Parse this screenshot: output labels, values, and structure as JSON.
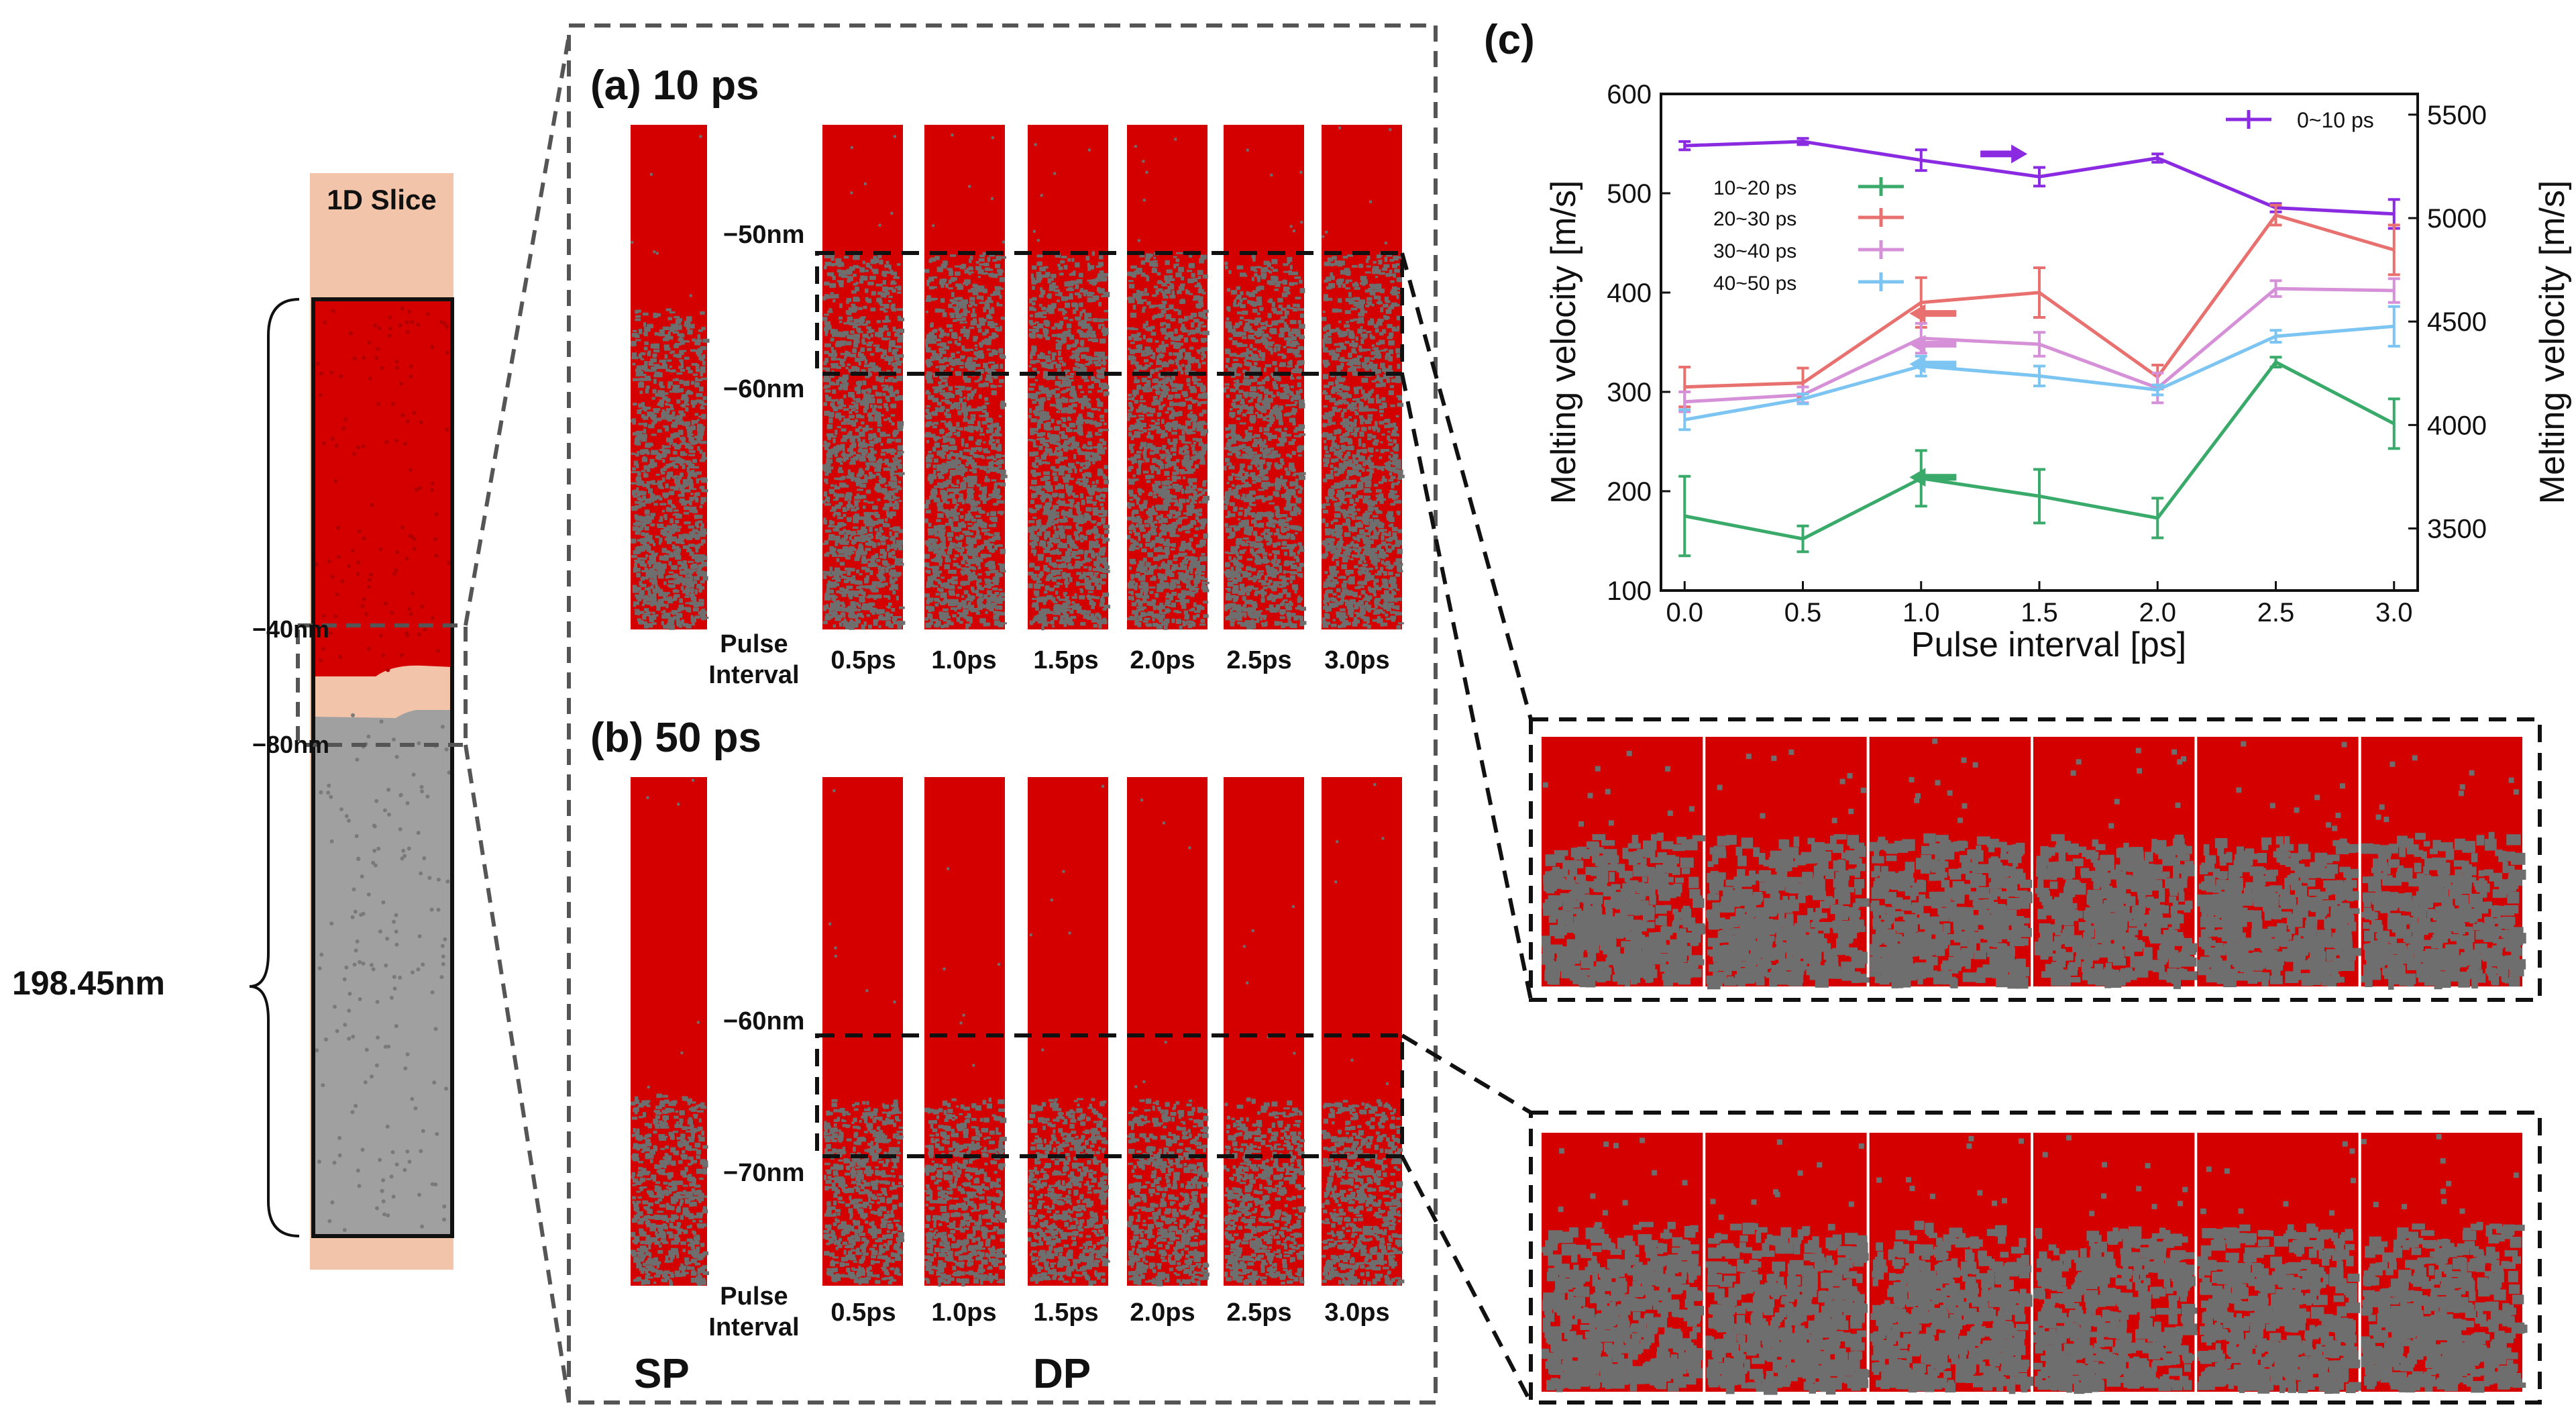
{
  "slice": {
    "title": "1D Slice",
    "marker_top": "−40nm",
    "marker_bottom": "−80nm",
    "length": "198.45nm"
  },
  "panel_a": {
    "label": "(a) 10 ps",
    "depth_top": "−50nm",
    "depth_bottom": "−60nm",
    "sp_melt_fraction": 0.36,
    "dp_melt_fraction": 0.25
  },
  "panel_b": {
    "label": "(b) 50 ps",
    "depth_top": "−60nm",
    "depth_bottom": "−70nm",
    "sp_melt_fraction": 0.62,
    "dp_melt_fraction": 0.63
  },
  "pulse_interval_label": [
    "Pulse",
    "Interval"
  ],
  "intervals": [
    "0.5ps",
    "1.0ps",
    "1.5ps",
    "2.0ps",
    "2.5ps",
    "3.0ps"
  ],
  "sp_label": "SP",
  "dp_label": "DP",
  "panel_c_label": "(c)",
  "colors": {
    "solid_atoms": "#d40000",
    "liquid_atoms": "#6e6e6e",
    "slice_bg": "#f2c4aa",
    "slice_gray": "#9a9a9a",
    "dash_gray": "#555555",
    "series_0_10": "#8a2be2",
    "series_10_20": "#3aaa6a",
    "series_20_30": "#e8706e",
    "series_30_40": "#d690d8",
    "series_40_50": "#7cc4f2"
  },
  "chart_data": {
    "type": "line",
    "title": "",
    "xlabel": "Pulse interval [ps]",
    "ylabel": "Melting velocity [m/s]",
    "ylabel_right": "Melting velocity [m/s]",
    "x": [
      0.0,
      0.5,
      1.0,
      1.5,
      2.0,
      2.5,
      3.0
    ],
    "xticks": [
      "0.0",
      "0.5",
      "1.0",
      "1.5",
      "2.0",
      "2.5",
      "3.0"
    ],
    "xlim": [
      -0.1,
      3.1
    ],
    "ylim": [
      100,
      600
    ],
    "yticks": [
      "100",
      "200",
      "300",
      "400",
      "500",
      "600"
    ],
    "ylim_right": [
      3200,
      5600
    ],
    "yticks_right": [
      "3500",
      "4000",
      "4500",
      "5000",
      "5500"
    ],
    "series": [
      {
        "name": "0~10 ps",
        "axis": "right",
        "color": "#8a2be2",
        "values": [
          5350,
          5370,
          5280,
          5200,
          5290,
          5050,
          5020
        ],
        "errors": [
          20,
          15,
          50,
          45,
          20,
          20,
          70
        ]
      },
      {
        "name": "10~20 ps",
        "axis": "left",
        "color": "#3aaa6a",
        "values": [
          175,
          152,
          213,
          195,
          173,
          330,
          268
        ],
        "errors": [
          40,
          13,
          28,
          27,
          20,
          5,
          25
        ]
      },
      {
        "name": "20~30 ps",
        "axis": "left",
        "color": "#e8706e",
        "values": [
          305,
          309,
          390,
          400,
          315,
          478,
          443
        ],
        "errors": [
          20,
          15,
          25,
          25,
          12,
          10,
          25
        ]
      },
      {
        "name": "30~40 ps",
        "axis": "left",
        "color": "#d690d8",
        "values": [
          290,
          297,
          354,
          348,
          304,
          404,
          402
        ],
        "errors": [
          10,
          8,
          15,
          12,
          15,
          8,
          12
        ]
      },
      {
        "name": "40~50 ps",
        "axis": "left",
        "color": "#7cc4f2",
        "values": [
          272,
          293,
          326,
          316,
          302,
          356,
          366
        ],
        "errors": [
          10,
          5,
          10,
          10,
          5,
          6,
          20
        ]
      }
    ],
    "arrows": [
      {
        "series": "0~10 ps",
        "x": 1.35,
        "y": 5310,
        "axis": "right",
        "direction": "right"
      },
      {
        "series": "20~30 ps",
        "x": 1.05,
        "y": 379,
        "axis": "left",
        "direction": "left"
      },
      {
        "series": "30~40 ps",
        "x": 1.05,
        "y": 348,
        "axis": "left",
        "direction": "left"
      },
      {
        "series": "40~50 ps",
        "x": 1.05,
        "y": 328,
        "axis": "left",
        "direction": "left"
      },
      {
        "series": "10~20 ps",
        "x": 1.05,
        "y": 214,
        "axis": "left",
        "direction": "left"
      }
    ]
  },
  "zoom_strips": [
    {
      "name": "zoom-10ps",
      "panels": 6,
      "melt_fraction": 0.38
    },
    {
      "name": "zoom-50ps",
      "panels": 6,
      "melt_fraction": 0.34
    }
  ]
}
